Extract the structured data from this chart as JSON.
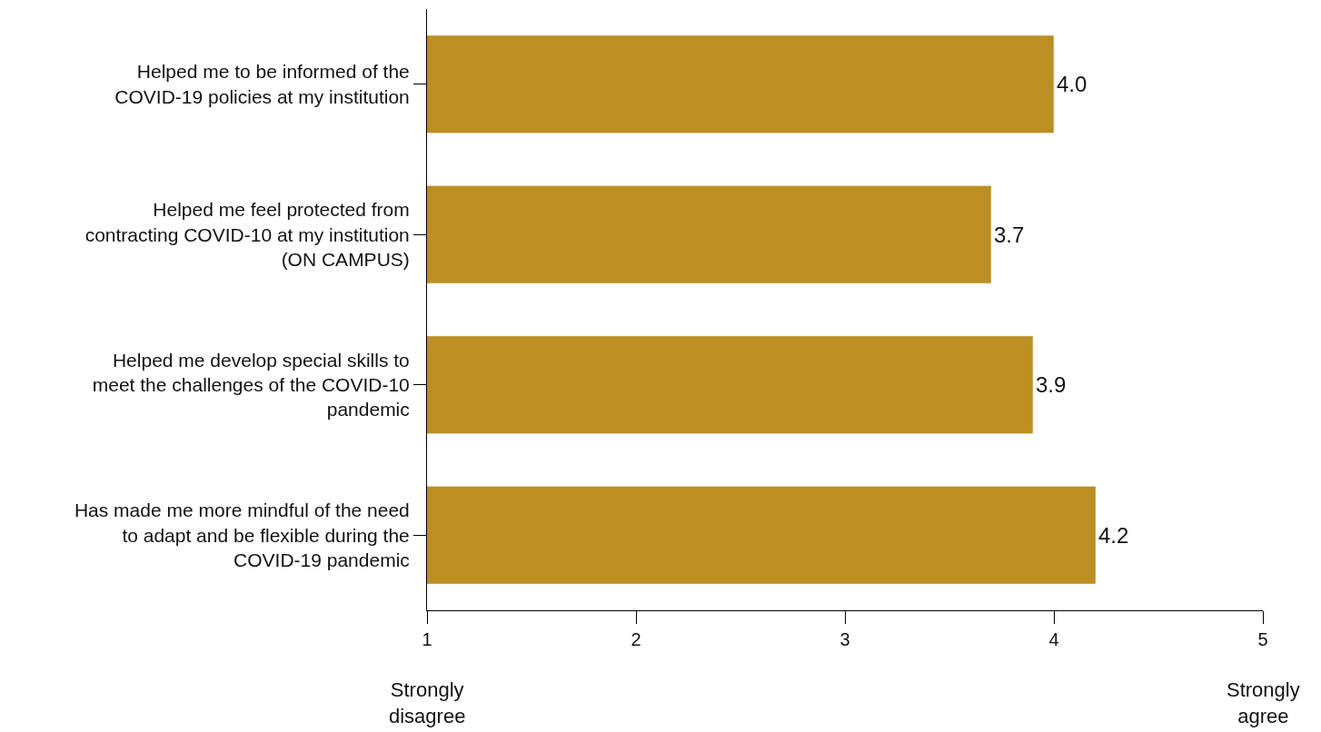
{
  "chart_data": {
    "type": "bar",
    "orientation": "horizontal",
    "categories": [
      "Helped me to be informed of the\nCOVID-19 policies at my institution",
      "Helped me feel protected from\ncontracting COVID-10 at my institution\n(ON CAMPUS)",
      "Helped me develop special skills to\nmeet the challenges of the COVID-10\npandemic",
      "Has made me more mindful of the need\nto adapt and be flexible during the\nCOVID-19 pandemic"
    ],
    "values": [
      4.0,
      3.7,
      3.9,
      4.2
    ],
    "value_labels": [
      "4.0",
      "3.7",
      "3.9",
      "4.2"
    ],
    "color": "#bc8f22",
    "xlim": [
      1,
      5
    ],
    "xticks": [
      1,
      2,
      3,
      4,
      5
    ],
    "annotations": [
      "Strongly\ndisagree",
      "Strongly\nagree"
    ],
    "legend": false
  }
}
